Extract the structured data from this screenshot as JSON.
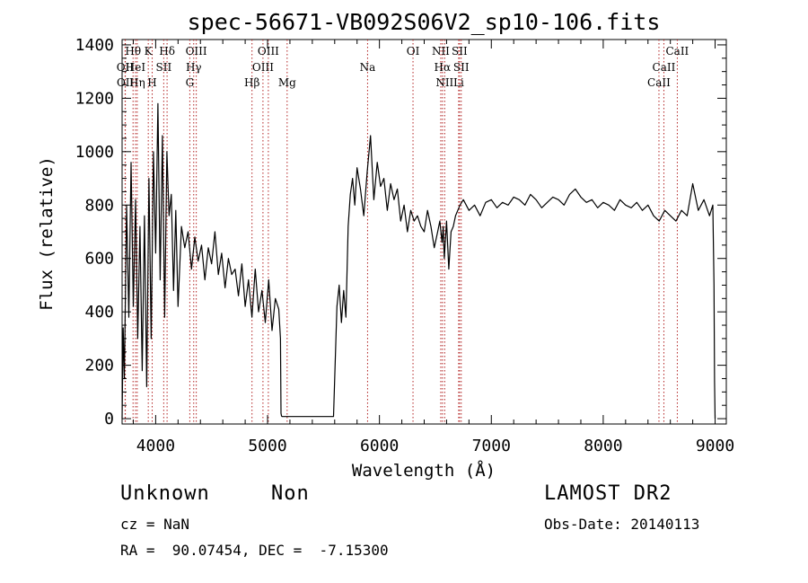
{
  "chart_data": {
    "type": "line",
    "title": "spec-56671-VB092S06V2_sp10-106.fits",
    "xlabel": "Wavelength (Å)",
    "ylabel": "Flux (relative)",
    "xlim": [
      3700,
      9100
    ],
    "ylim": [
      -20,
      1420
    ],
    "xticks": [
      4000,
      5000,
      6000,
      7000,
      8000,
      9000
    ],
    "yticks": [
      0,
      200,
      400,
      600,
      800,
      1000,
      1200,
      1400
    ],
    "grid": false,
    "series": [
      {
        "x": [
          3700,
          3710,
          3720,
          3740,
          3760,
          3780,
          3800,
          3820,
          3840,
          3860,
          3880,
          3900,
          3920,
          3940,
          3960,
          3980,
          4000,
          4020,
          4040,
          4060,
          4080,
          4100,
          4120,
          4140,
          4160,
          4180,
          4200,
          4230,
          4260,
          4290,
          4320,
          4350,
          4380,
          4410,
          4440,
          4470,
          4500,
          4530,
          4560,
          4590,
          4620,
          4650,
          4680,
          4710,
          4740,
          4770,
          4800,
          4830,
          4860,
          4890,
          4920,
          4950,
          4980,
          5010,
          5040,
          5070,
          5100,
          5115,
          5120,
          5125,
          5130,
          5200,
          5300,
          5400,
          5500,
          5560,
          5570,
          5580,
          5590,
          5600,
          5620,
          5640,
          5660,
          5680,
          5700,
          5720,
          5740,
          5760,
          5780,
          5800,
          5830,
          5860,
          5890,
          5920,
          5950,
          5980,
          6010,
          6040,
          6070,
          6100,
          6130,
          6160,
          6190,
          6220,
          6250,
          6280,
          6310,
          6340,
          6370,
          6400,
          6430,
          6460,
          6490,
          6520,
          6540,
          6560,
          6570,
          6580,
          6600,
          6620,
          6640,
          6660,
          6680,
          6700,
          6720,
          6750,
          6800,
          6850,
          6900,
          6950,
          7000,
          7050,
          7100,
          7150,
          7200,
          7250,
          7300,
          7350,
          7400,
          7450,
          7500,
          7550,
          7600,
          7650,
          7700,
          7750,
          7800,
          7850,
          7900,
          7950,
          8000,
          8050,
          8100,
          8150,
          8200,
          8250,
          8300,
          8350,
          8400,
          8450,
          8500,
          8550,
          8600,
          8650,
          8700,
          8750,
          8800,
          8850,
          8900,
          8950,
          8980,
          8990,
          8995,
          9000
        ],
        "values": [
          0,
          340,
          150,
          800,
          380,
          960,
          420,
          820,
          300,
          720,
          180,
          760,
          120,
          900,
          300,
          1000,
          620,
          1180,
          520,
          1060,
          380,
          1000,
          760,
          840,
          480,
          780,
          420,
          720,
          640,
          700,
          560,
          680,
          590,
          650,
          520,
          640,
          580,
          700,
          540,
          620,
          490,
          600,
          540,
          560,
          460,
          580,
          420,
          520,
          380,
          560,
          400,
          480,
          360,
          520,
          330,
          450,
          410,
          300,
          20,
          10,
          8,
          8,
          8,
          8,
          8,
          8,
          8,
          8,
          8,
          150,
          420,
          500,
          360,
          480,
          380,
          720,
          840,
          900,
          800,
          940,
          860,
          760,
          920,
          1060,
          820,
          960,
          870,
          900,
          780,
          880,
          820,
          860,
          740,
          800,
          700,
          780,
          740,
          760,
          720,
          700,
          780,
          720,
          640,
          700,
          740,
          660,
          720,
          600,
          740,
          560,
          700,
          720,
          760,
          780,
          800,
          820,
          780,
          800,
          760,
          810,
          820,
          790,
          810,
          800,
          830,
          820,
          800,
          840,
          820,
          790,
          810,
          830,
          820,
          800,
          840,
          860,
          830,
          810,
          820,
          790,
          810,
          800,
          780,
          820,
          800,
          790,
          810,
          780,
          800,
          760,
          740,
          780,
          760,
          740,
          780,
          760,
          880,
          780,
          820,
          760,
          800,
          500,
          140,
          0
        ]
      }
    ],
    "lines": [
      {
        "label": "Hθ",
        "x": 3798,
        "row": 0
      },
      {
        "label": "OII",
        "x": 3727,
        "row": 1
      },
      {
        "label": "OII",
        "x": 3729,
        "row": 2
      },
      {
        "label": "HeI",
        "x": 3820,
        "row": 1
      },
      {
        "label": "Hη",
        "x": 3835,
        "row": 2
      },
      {
        "label": "K",
        "x": 3934,
        "row": 0
      },
      {
        "label": "H",
        "x": 3969,
        "row": 2
      },
      {
        "label": "Hδ",
        "x": 4102,
        "row": 0
      },
      {
        "label": "SII",
        "x": 4072,
        "row": 1
      },
      {
        "label": "OIII",
        "x": 4363,
        "row": 0
      },
      {
        "label": "Hγ",
        "x": 4340,
        "row": 1
      },
      {
        "label": "G",
        "x": 4305,
        "row": 2
      },
      {
        "label": "OIII",
        "x": 5007,
        "row": 0
      },
      {
        "label": "OIII",
        "x": 4959,
        "row": 1
      },
      {
        "label": "Hβ",
        "x": 4861,
        "row": 2
      },
      {
        "label": "Mg",
        "x": 5175,
        "row": 2
      },
      {
        "label": "Na",
        "x": 5894,
        "row": 1
      },
      {
        "label": "OI",
        "x": 6300,
        "row": 0
      },
      {
        "label": "NII",
        "x": 6548,
        "row": 0
      },
      {
        "label": "Hα",
        "x": 6563,
        "row": 1
      },
      {
        "label": "NII",
        "x": 6583,
        "row": 2
      },
      {
        "label": "SII",
        "x": 6716,
        "row": 0
      },
      {
        "label": "SII",
        "x": 6731,
        "row": 1
      },
      {
        "label": "Li",
        "x": 6708,
        "row": 2
      },
      {
        "label": "CaII",
        "x": 8662,
        "row": 0
      },
      {
        "label": "CaII",
        "x": 8542,
        "row": 1
      },
      {
        "label": "CaII",
        "x": 8498,
        "row": 2
      }
    ]
  },
  "info": {
    "object_class": "Unknown",
    "object_subclass": "Non",
    "survey": "LAMOST DR2",
    "redshift": "cz = NaN",
    "obs_date": "Obs-Date: 20140113",
    "coords": "RA =  90.07454, DEC =  -7.15300"
  }
}
